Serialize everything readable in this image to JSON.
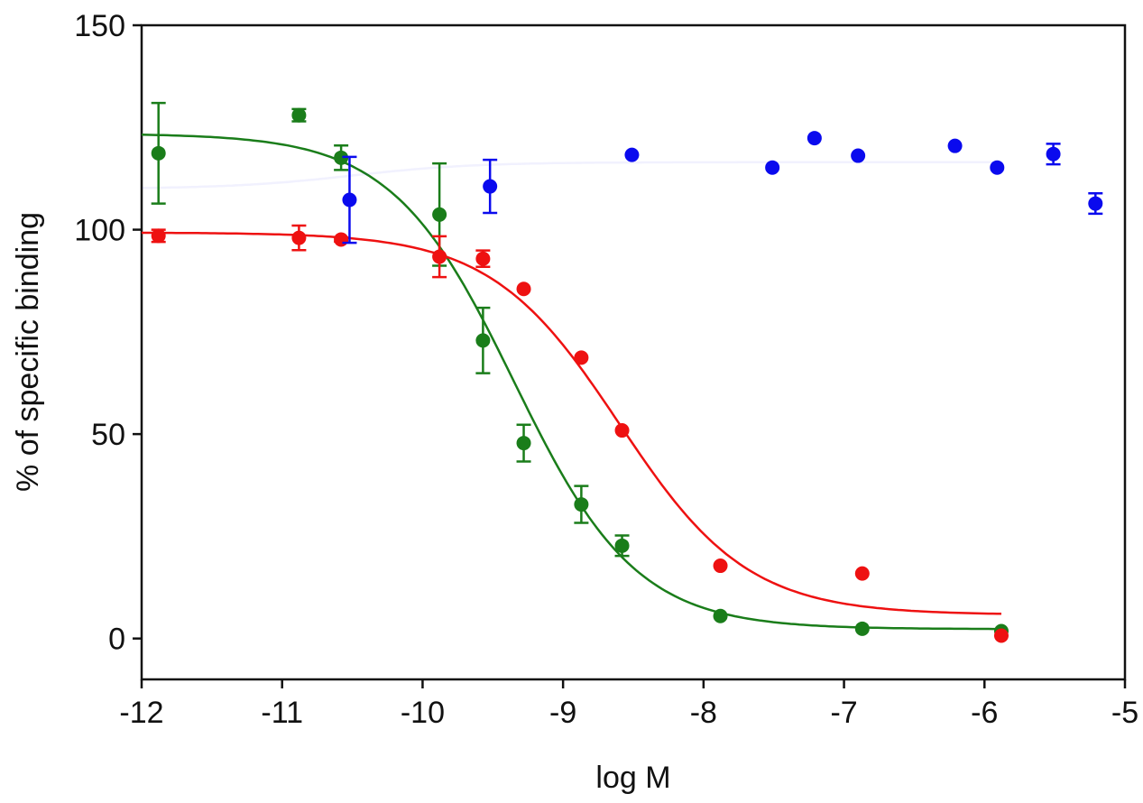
{
  "chart_data": {
    "type": "scatter",
    "title": "",
    "xlabel": "log M",
    "ylabel": "% of specific binding",
    "xlim": [
      -12,
      -5
    ],
    "ylim": [
      -10,
      150
    ],
    "xticks": [
      -12,
      -11,
      -10,
      -9,
      -8,
      -7,
      -6,
      -5
    ],
    "yticks": [
      0,
      50,
      100,
      150
    ],
    "grid": false,
    "legend": "none",
    "series": [
      {
        "color": "#1a7d1a",
        "x": [
          -11.88,
          -10.88,
          -10.58,
          -9.88,
          -9.57,
          -9.28,
          -8.87,
          -8.58,
          -7.88,
          -6.87,
          -5.88
        ],
        "y": [
          118.7,
          128.0,
          117.6,
          103.7,
          72.9,
          47.8,
          32.8,
          22.7,
          5.5,
          2.4,
          1.8
        ],
        "err": [
          12.3,
          1.5,
          3.0,
          12.5,
          8.0,
          4.5,
          4.5,
          2.5,
          0,
          0,
          0
        ],
        "fit": {
          "top": 123.5,
          "bottom": 2.3,
          "logIC50": -9.35,
          "hill": -1.0,
          "xrange": [
            -12,
            -5.88
          ]
        }
      },
      {
        "color": "#ee1111",
        "x": [
          -11.88,
          -10.88,
          -10.58,
          -9.88,
          -9.57,
          -9.28,
          -8.87,
          -8.58,
          -7.88,
          -6.87,
          -5.88
        ],
        "y": [
          98.5,
          98.0,
          97.6,
          93.4,
          92.9,
          85.5,
          68.7,
          50.9,
          17.8,
          15.9,
          0.7
        ],
        "err": [
          1.5,
          3.0,
          0.5,
          5.0,
          2.0,
          0,
          0,
          0,
          0,
          0,
          0
        ],
        "fit": {
          "top": 99.3,
          "bottom": 5.8,
          "logIC50": -8.6,
          "hill": -0.95,
          "xrange": [
            -12,
            -5.88
          ]
        }
      },
      {
        "color": "#0a0aee",
        "x": [
          -10.52,
          -9.52,
          -8.51,
          -7.51,
          -7.21,
          -6.9,
          -6.21,
          -5.91,
          -5.51,
          -5.21
        ],
        "y": [
          107.3,
          110.6,
          118.3,
          115.2,
          122.4,
          118.1,
          120.5,
          115.2,
          118.5,
          106.4
        ],
        "err": [
          10.5,
          6.5,
          0,
          0,
          0,
          0,
          0,
          0,
          2.5,
          2.5
        ],
        "fit": {
          "top": 116.5,
          "bottom": 110.0,
          "logIC50": -10.5,
          "hill": 1.0,
          "xrange": [
            -12,
            -5.88
          ]
        }
      }
    ]
  }
}
